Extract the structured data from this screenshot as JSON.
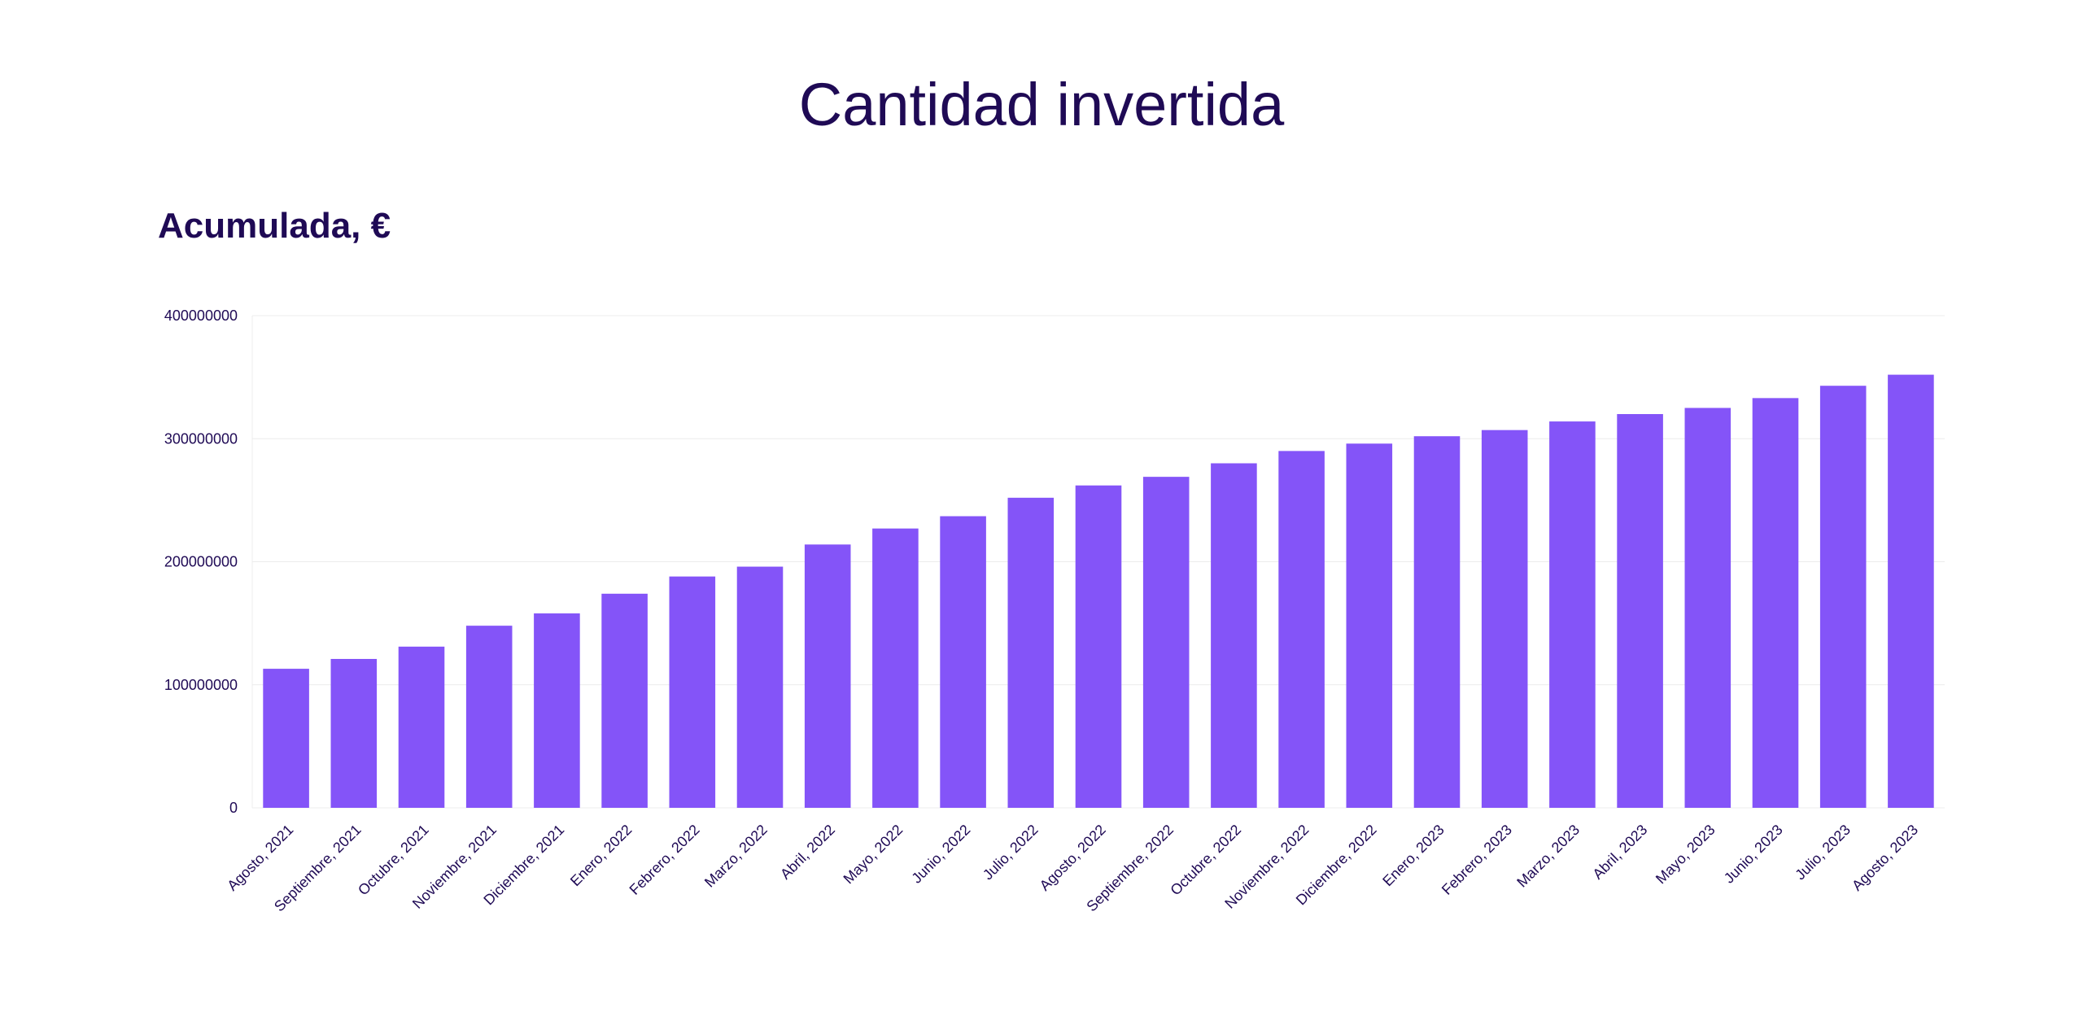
{
  "page": {
    "title": "Cantidad invertida"
  },
  "colors": {
    "bar": "#8454f8",
    "text": "#1f0a55",
    "grid": "#ececec"
  },
  "chart_data": {
    "type": "bar",
    "title": "Cantidad invertida",
    "subtitle": "Acumulada, €",
    "xlabel": "",
    "ylabel": "",
    "ylim": [
      0,
      400000000
    ],
    "yticks": [
      0,
      100000000,
      200000000,
      300000000,
      400000000
    ],
    "ytick_labels": [
      "0",
      "100000000",
      "200000000",
      "300000000",
      "400000000"
    ],
    "grid": true,
    "legend": "none",
    "categories": [
      "Agosto, 2021",
      "Septiembre, 2021",
      "Octubre, 2021",
      "Noviembre, 2021",
      "Diciembre, 2021",
      "Enero, 2022",
      "Febrero, 2022",
      "Marzo, 2022",
      "Abril, 2022",
      "Mayo, 2022",
      "Junio, 2022",
      "Julio, 2022",
      "Agosto, 2022",
      "Septiembre, 2022",
      "Octubre, 2022",
      "Noviembre, 2022",
      "Diciembre, 2022",
      "Enero, 2023",
      "Febrero, 2023",
      "Marzo, 2023",
      "Abril, 2023",
      "Mayo, 2023",
      "Junio, 2023",
      "Julio, 2023",
      "Agosto, 2023"
    ],
    "values": [
      113000000,
      121000000,
      131000000,
      148000000,
      158000000,
      174000000,
      188000000,
      196000000,
      214000000,
      227000000,
      237000000,
      252000000,
      262000000,
      269000000,
      280000000,
      290000000,
      296000000,
      302000000,
      307000000,
      314000000,
      320000000,
      325000000,
      333000000,
      343000000,
      352000000
    ]
  }
}
